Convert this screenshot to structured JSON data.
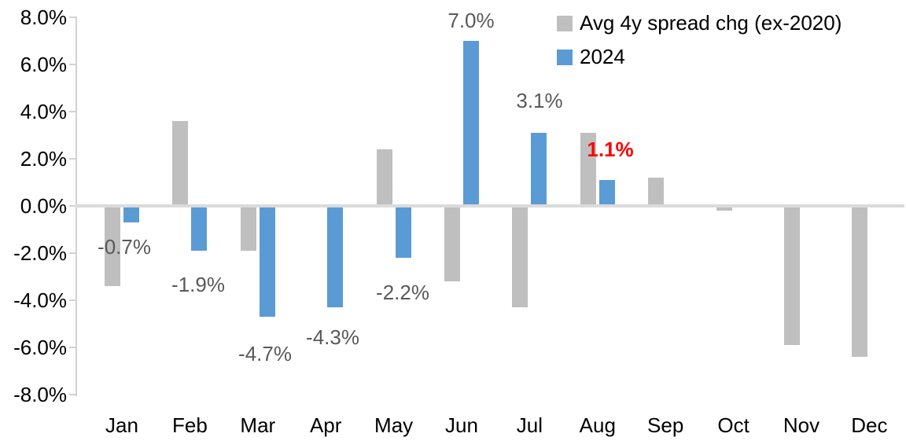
{
  "chart_data": {
    "type": "bar",
    "title": "",
    "xlabel": "",
    "ylabel": "",
    "categories": [
      "Jan",
      "Feb",
      "Mar",
      "Apr",
      "May",
      "Jun",
      "Jul",
      "Aug",
      "Sep",
      "Oct",
      "Nov",
      "Dec"
    ],
    "series": [
      {
        "name": "Avg 4y spread chg (ex-2020)",
        "color": "#BFBFBF",
        "values": [
          -3.4,
          3.6,
          -1.9,
          0.0,
          2.4,
          -3.2,
          -4.3,
          3.1,
          1.2,
          -0.2,
          -5.9,
          -6.4
        ]
      },
      {
        "name": "2024",
        "color": "#5B9BD5",
        "values": [
          -0.7,
          -1.9,
          -4.7,
          -4.3,
          -2.2,
          7.0,
          3.1,
          1.1,
          null,
          null,
          null,
          null
        ]
      }
    ],
    "ylim": [
      -8,
      8
    ],
    "ytick_step": 2,
    "ytick_labels": [
      "8.0%",
      "6.0%",
      "4.0%",
      "2.0%",
      "0.0%",
      "-2.0%",
      "-4.0%",
      "-6.0%",
      "-8.0%"
    ],
    "ytick_values": [
      8,
      6,
      4,
      2,
      0,
      -2,
      -4,
      -6,
      -8
    ],
    "grid": "off",
    "baseline": "zero line only",
    "legend_position": "top-right",
    "axis_color": "#D2D2D2",
    "label_color": "#595959",
    "highlight_color": "#FF0000",
    "annotations": [
      {
        "month": "Jan",
        "series": "2024",
        "text": "-0.7%",
        "color": "#595959",
        "bold": false
      },
      {
        "month": "Feb",
        "series": "2024",
        "text": "-1.9%",
        "color": "#595959",
        "bold": false
      },
      {
        "month": "Mar",
        "series": "2024",
        "text": "-4.7%",
        "color": "#595959",
        "bold": false
      },
      {
        "month": "Apr",
        "series": "2024",
        "text": "-4.3%",
        "color": "#595959",
        "bold": false
      },
      {
        "month": "May",
        "series": "2024",
        "text": "-2.2%",
        "color": "#595959",
        "bold": false
      },
      {
        "month": "Jun",
        "series": "2024",
        "text": "7.0%",
        "color": "#595959",
        "bold": false
      },
      {
        "month": "Jul",
        "series": "2024",
        "text": "3.1%",
        "color": "#595959",
        "bold": false
      },
      {
        "month": "Aug",
        "series": "2024",
        "text": "1.1%",
        "color": "#FF0000",
        "bold": true
      }
    ]
  }
}
